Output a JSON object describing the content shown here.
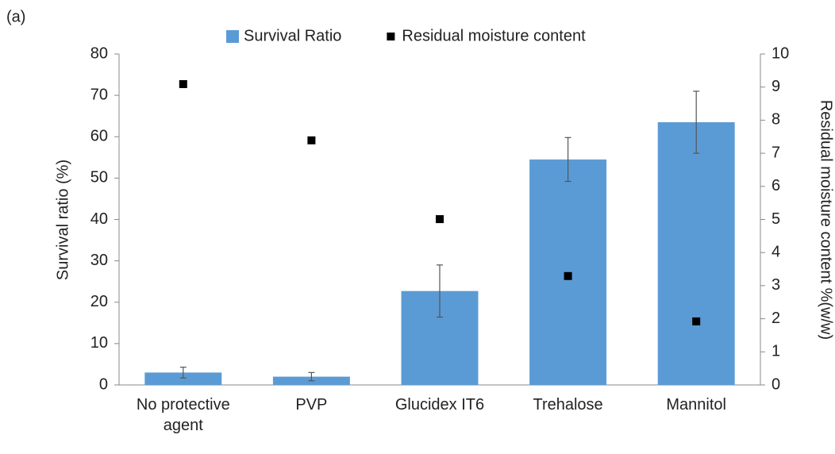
{
  "chart_data": {
    "type": "bar",
    "annotation": "(a)",
    "ylabel": "Survival ratio (%)",
    "y2label": "Residual moisture content %(w/w)",
    "categories": [
      "No protective agent",
      "PVP",
      "Glucidex IT6",
      "Trehalose",
      "Mannitol"
    ],
    "series": [
      {
        "name": "Survival Ratio",
        "type": "bar",
        "color": "#5b9bd5",
        "values": [
          3,
          2,
          22.7,
          54.5,
          63.5
        ],
        "errors": [
          1.3,
          1,
          6.3,
          5.3,
          7.5
        ]
      },
      {
        "name": "Residual moisture content",
        "type": "scatter",
        "axis": "y2",
        "color": "#000000",
        "values": [
          9.09,
          7.39,
          5.01,
          3.29,
          1.92
        ]
      }
    ],
    "ylim": [
      0,
      80
    ],
    "yticks": [
      0,
      10,
      20,
      30,
      40,
      50,
      60,
      70,
      80
    ],
    "y2lim": [
      0,
      10
    ],
    "y2ticks": [
      0,
      1,
      2,
      3,
      4,
      5,
      6,
      7,
      8,
      9,
      10
    ],
    "legend": "top"
  }
}
